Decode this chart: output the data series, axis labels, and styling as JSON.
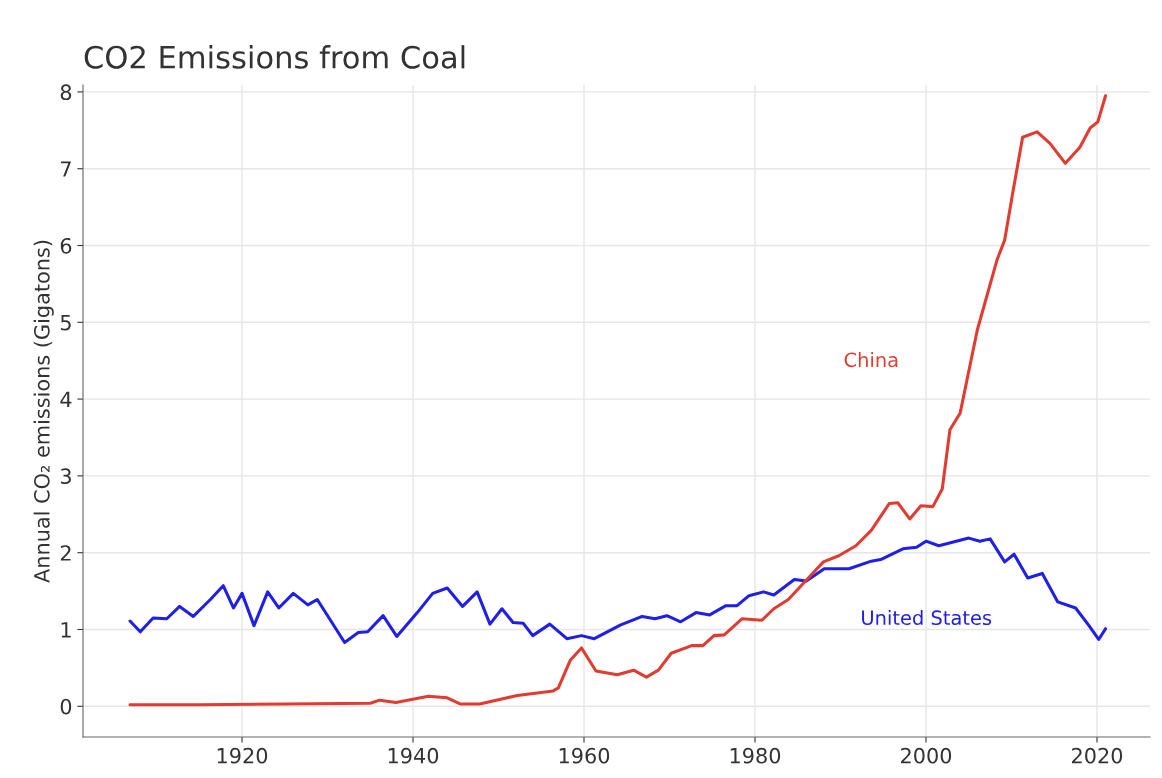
{
  "chart_data": {
    "type": "line",
    "title": "CO2 Emissions from Coal",
    "ylabel": "Annual CO₂ emissions (Gigatons)",
    "series": [
      {
        "name": "United States",
        "color": "#1f1fe6",
        "x": [
          1906.9,
          1908.1,
          1909.6,
          1911.2,
          1912.7,
          1914.3,
          1916.3,
          1917.8,
          1919,
          1920,
          1921.4,
          1923,
          1924.3,
          1926,
          1927.7,
          1928.8,
          1932,
          1933.6,
          1934.7,
          1936.5,
          1938.1,
          1940.5,
          1942.3,
          1944,
          1945.8,
          1947.5,
          1949,
          1950.4,
          1951.7,
          1952.9,
          1954,
          1956,
          1958,
          1959.7,
          1961.2,
          1964.3,
          1966.8,
          1968.3,
          1969.7,
          1971.3,
          1973.1,
          1974.7,
          1976.6,
          1977.9,
          1979.3,
          1981,
          1982.2,
          1984.6,
          1986,
          1988.1,
          1991,
          1993.6,
          1994.7,
          1997.3,
          1998.9,
          2000,
          2001.5,
          2003.2,
          2005,
          2006.3,
          2007.5,
          2009.2,
          2010.3,
          2011.9,
          2013.6,
          2015.4,
          2017.5,
          2019,
          2020.2,
          2021
        ],
        "values": [
          1.11,
          0.97,
          1.15,
          1.14,
          1.3,
          1.17,
          1.39,
          1.57,
          1.28,
          1.47,
          1.05,
          1.49,
          1.28,
          1.47,
          1.32,
          1.39,
          0.83,
          0.96,
          0.97,
          1.18,
          0.91,
          1.22,
          1.47,
          1.54,
          1.3,
          1.49,
          1.07,
          1.27,
          1.09,
          1.08,
          0.92,
          1.07,
          0.88,
          0.92,
          0.88,
          1.06,
          1.17,
          1.14,
          1.18,
          1.1,
          1.22,
          1.19,
          1.31,
          1.31,
          1.44,
          1.49,
          1.45,
          1.65,
          1.63,
          1.79,
          1.79,
          1.89,
          1.91,
          2.05,
          2.07,
          2.15,
          2.09,
          2.14,
          2.19,
          2.15,
          2.18,
          1.88,
          1.98,
          1.67,
          1.73,
          1.36,
          1.28,
          1.06,
          0.87,
          1.01
        ]
      },
      {
        "name": "China",
        "color": "#e03c31",
        "x": [
          1906.9,
          1915,
          1925,
          1935,
          1936.1,
          1938,
          1941.8,
          1944,
          1945.5,
          1947.8,
          1952.2,
          1956.4,
          1957,
          1958.4,
          1959.7,
          1961.4,
          1963.9,
          1965.8,
          1967.3,
          1968.7,
          1970.2,
          1972.6,
          1973.9,
          1975.2,
          1976.4,
          1978.5,
          1980.8,
          1982.2,
          1983.9,
          1986.4,
          1988,
          1989.8,
          1991.8,
          1993.6,
          1995.7,
          1996.7,
          1998.1,
          1999.4,
          2000.8,
          2001.9,
          2002.8,
          2004,
          2006,
          2008.3,
          2009.2,
          2010.2,
          2011.3,
          2013,
          2014.5,
          2016.3,
          2018,
          2019.2,
          2020.1,
          2021
        ],
        "values": [
          0.02,
          0.02,
          0.03,
          0.04,
          0.08,
          0.05,
          0.13,
          0.11,
          0.03,
          0.03,
          0.14,
          0.2,
          0.24,
          0.6,
          0.76,
          0.46,
          0.41,
          0.47,
          0.38,
          0.47,
          0.69,
          0.79,
          0.79,
          0.92,
          0.93,
          1.14,
          1.12,
          1.27,
          1.39,
          1.69,
          1.88,
          1.96,
          2.09,
          2.29,
          2.64,
          2.65,
          2.44,
          2.61,
          2.6,
          2.83,
          3.6,
          3.82,
          4.9,
          5.81,
          6.07,
          6.72,
          7.41,
          7.48,
          7.33,
          7.07,
          7.28,
          7.53,
          7.61,
          7.95
        ]
      }
    ],
    "xlim": [
      1901.4,
      2026.2
    ],
    "xticks": [
      1920,
      1940,
      1960,
      1980,
      2000,
      2020
    ],
    "ylim": [
      -0.4,
      8.09
    ],
    "yticks": [
      0,
      1,
      2,
      3,
      4,
      5,
      6,
      7,
      8
    ],
    "grid": true,
    "marker": "none",
    "line_style": "solid"
  }
}
